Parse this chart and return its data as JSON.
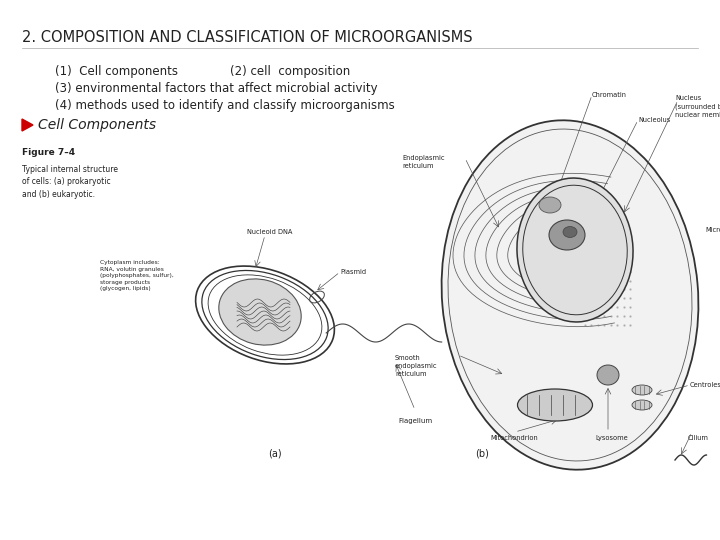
{
  "title": "2. COMPOSITION AND CLASSIFICATION OF MICROORGANISMS",
  "title_fontsize": 10.5,
  "line1a": "(1)  Cell components",
  "line1b": "(2) cell  composition",
  "line2": "(3) environmental factors that affect microbial activity",
  "line3": "(4) methods used to identify and classify microorganisms",
  "bullet_text": "Cell Components",
  "bullet_fontsize": 10,
  "lines_fontsize": 8.5,
  "fig_caption_bold": "Figure 7–4",
  "fig_caption_text": "Typical internal structure\nof cells: (a) prokaryotic\nand (b) eukaryotic.",
  "bg_color": "#ffffff",
  "text_color": "#222222",
  "arrow_color": "#cc0000",
  "cell_color": "#888888"
}
